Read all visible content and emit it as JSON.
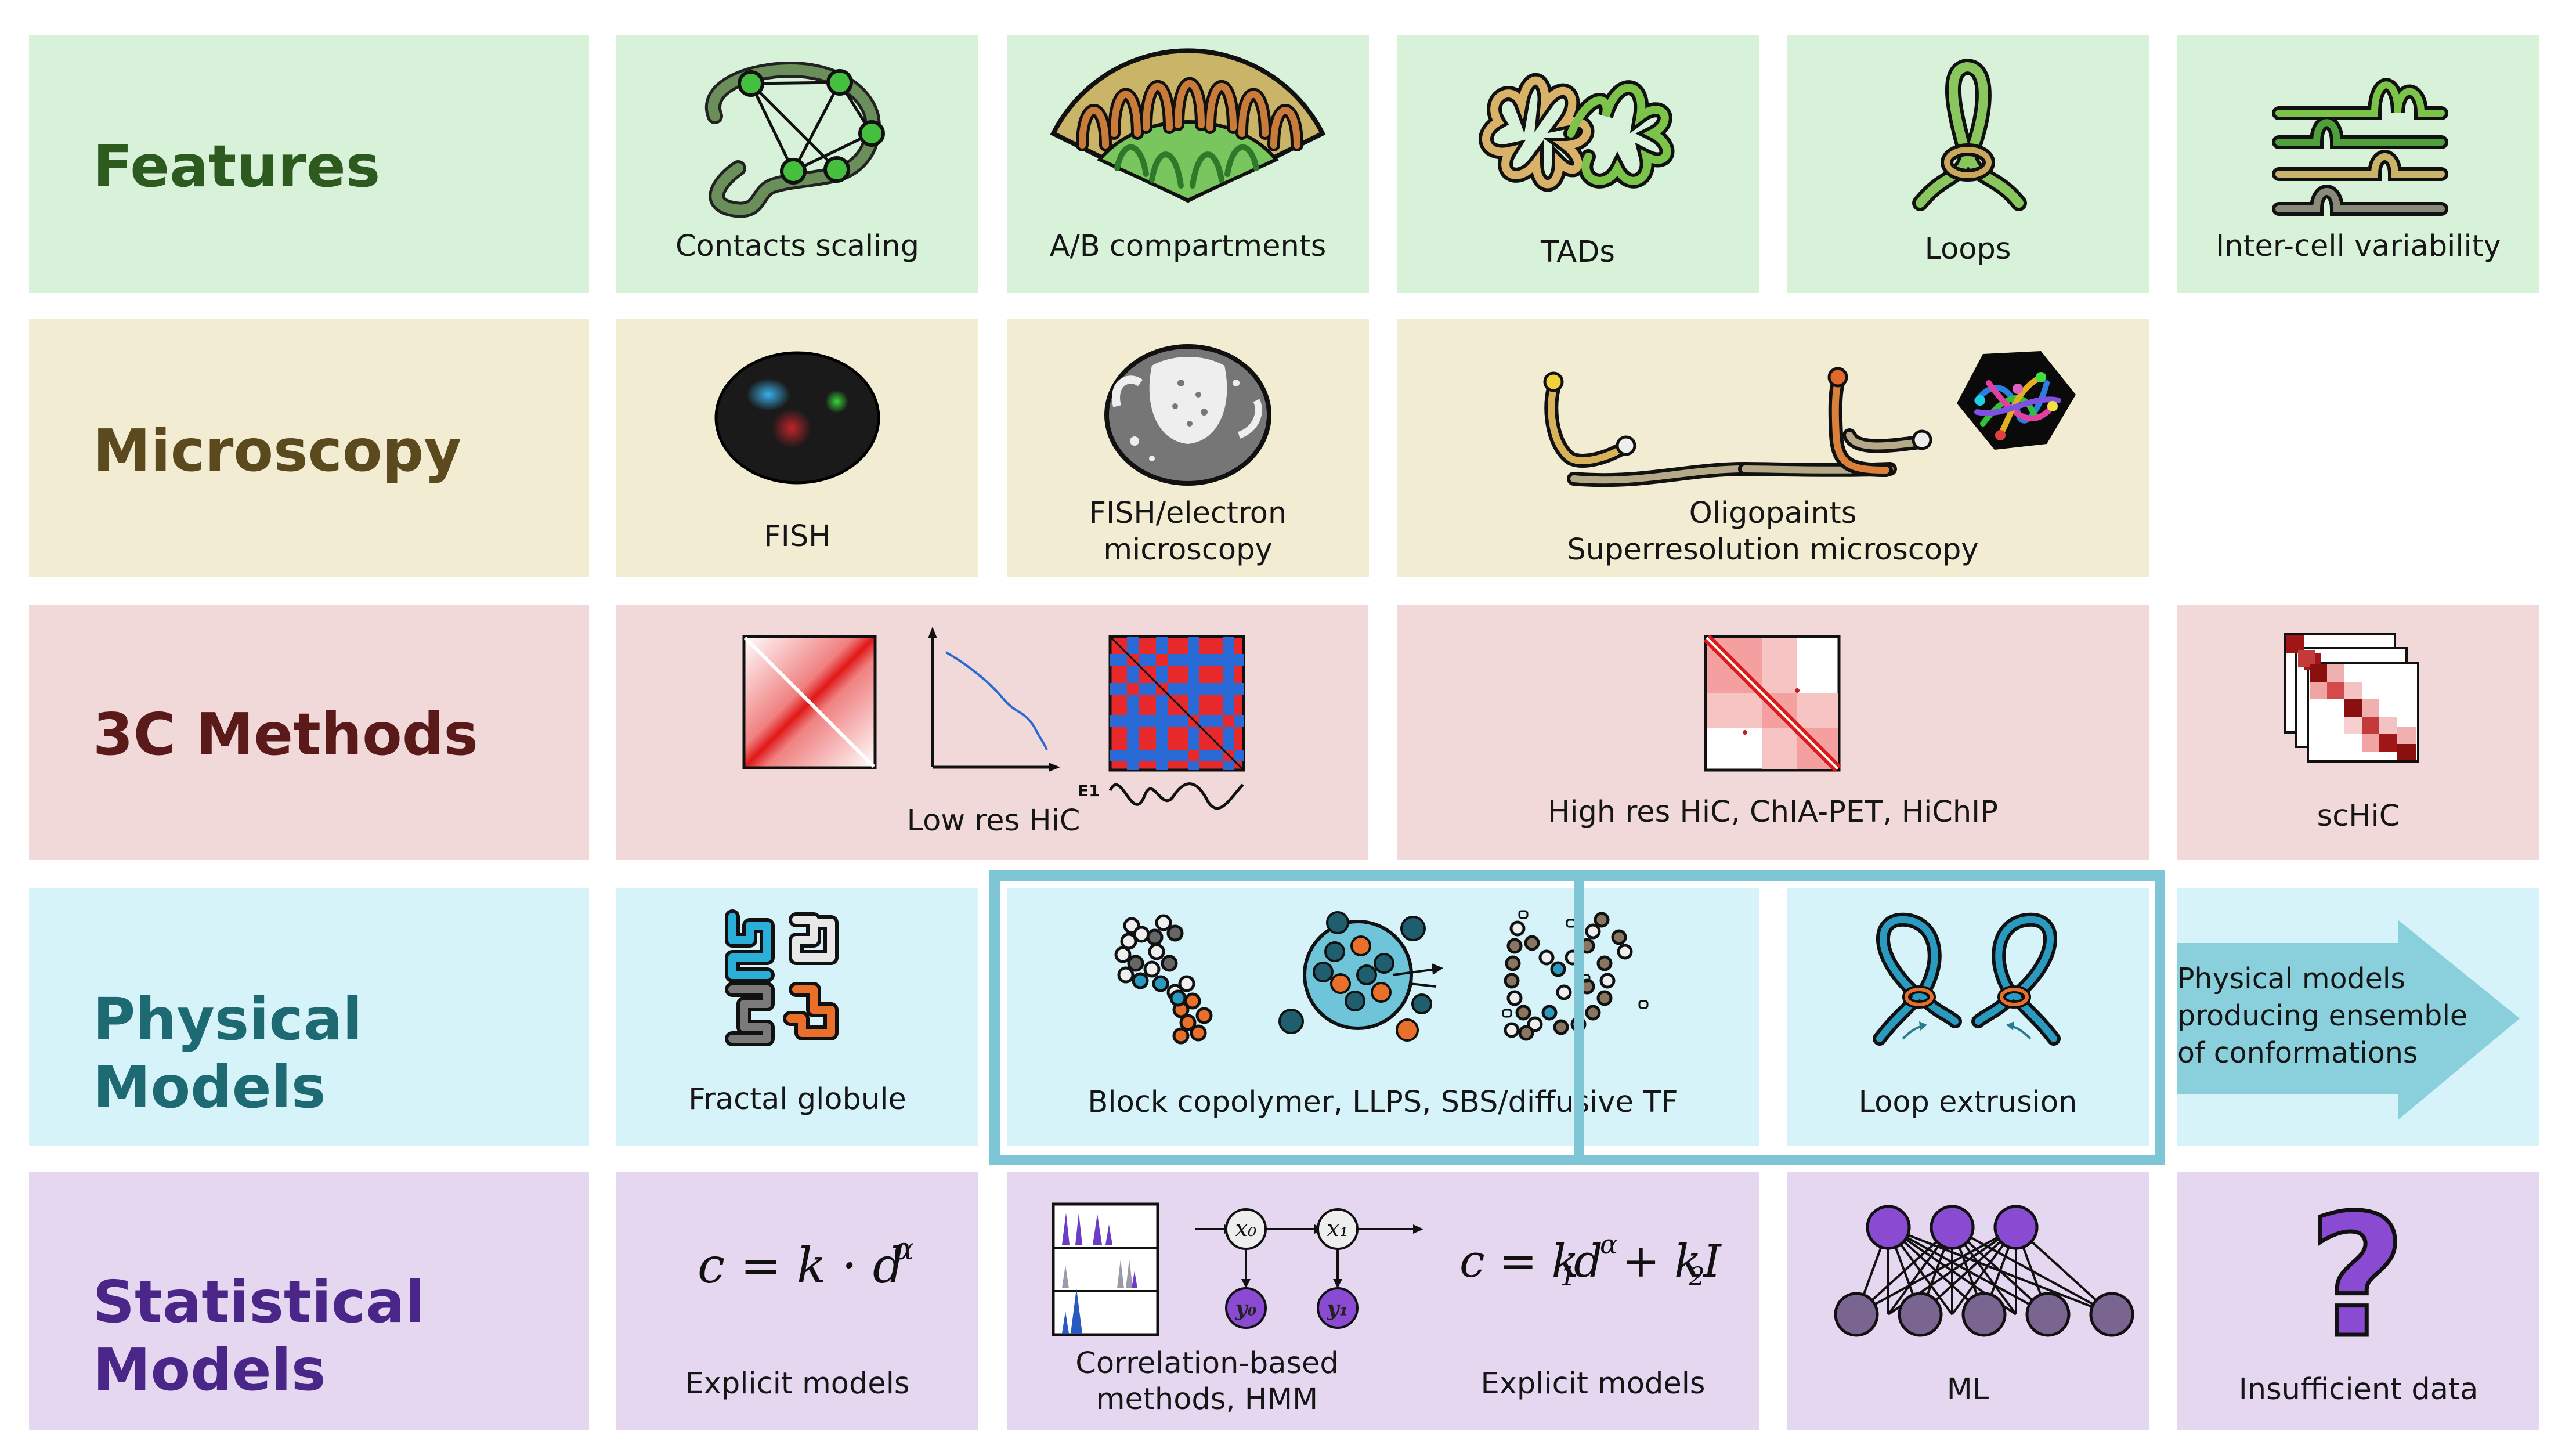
{
  "rows": {
    "features": "Features",
    "microscopy": "Microscopy",
    "methods3c": "3C Methods",
    "physical": "Physical Models",
    "statistical": "Statistical Models"
  },
  "features": {
    "contacts": "Contacts scaling",
    "ab": "A/B compartments",
    "tads": "TADs",
    "loops": "Loops",
    "intercell": "Inter-cell variability"
  },
  "microscopy": {
    "fish": "FISH",
    "fish_em_1": "FISH/electron",
    "fish_em_2": "microscopy",
    "oligo_1": "Oligopaints",
    "oligo_2": "Superresolution microscopy"
  },
  "methods": {
    "e1": "E1",
    "lowres": "Low res HiC",
    "highres": "High res HiC, ChIA-PET, HiChIP",
    "schic": "scHiC"
  },
  "physical": {
    "fractal": "Fractal globule",
    "block": "Block copolymer, LLPS, SBS/diffusive TF",
    "loopext": "Loop extrusion",
    "arrow_1": "Physical models",
    "arrow_2": "producing ensemble",
    "arrow_3": "of conformations"
  },
  "statistical": {
    "explicit1": "Explicit models",
    "corr_1": "Correlation-based",
    "corr_2": "methods, HMM",
    "explicit2": "Explicit models",
    "ml": "ML",
    "insufficient": "Insufficient data",
    "qmark": "?",
    "x0": "x₀",
    "x1": "x₁",
    "y0": "y₀",
    "y1": "y₁"
  },
  "colors": {
    "features_title": "#2d5a1e",
    "microscopy_title": "#5a4a1e",
    "methods_title": "#5a1a1a",
    "physical_title": "#1e6a72",
    "statistical_title": "#4a2688",
    "highlight_border": "#7ec6d6",
    "arrow_fill": "#8acfdc"
  }
}
